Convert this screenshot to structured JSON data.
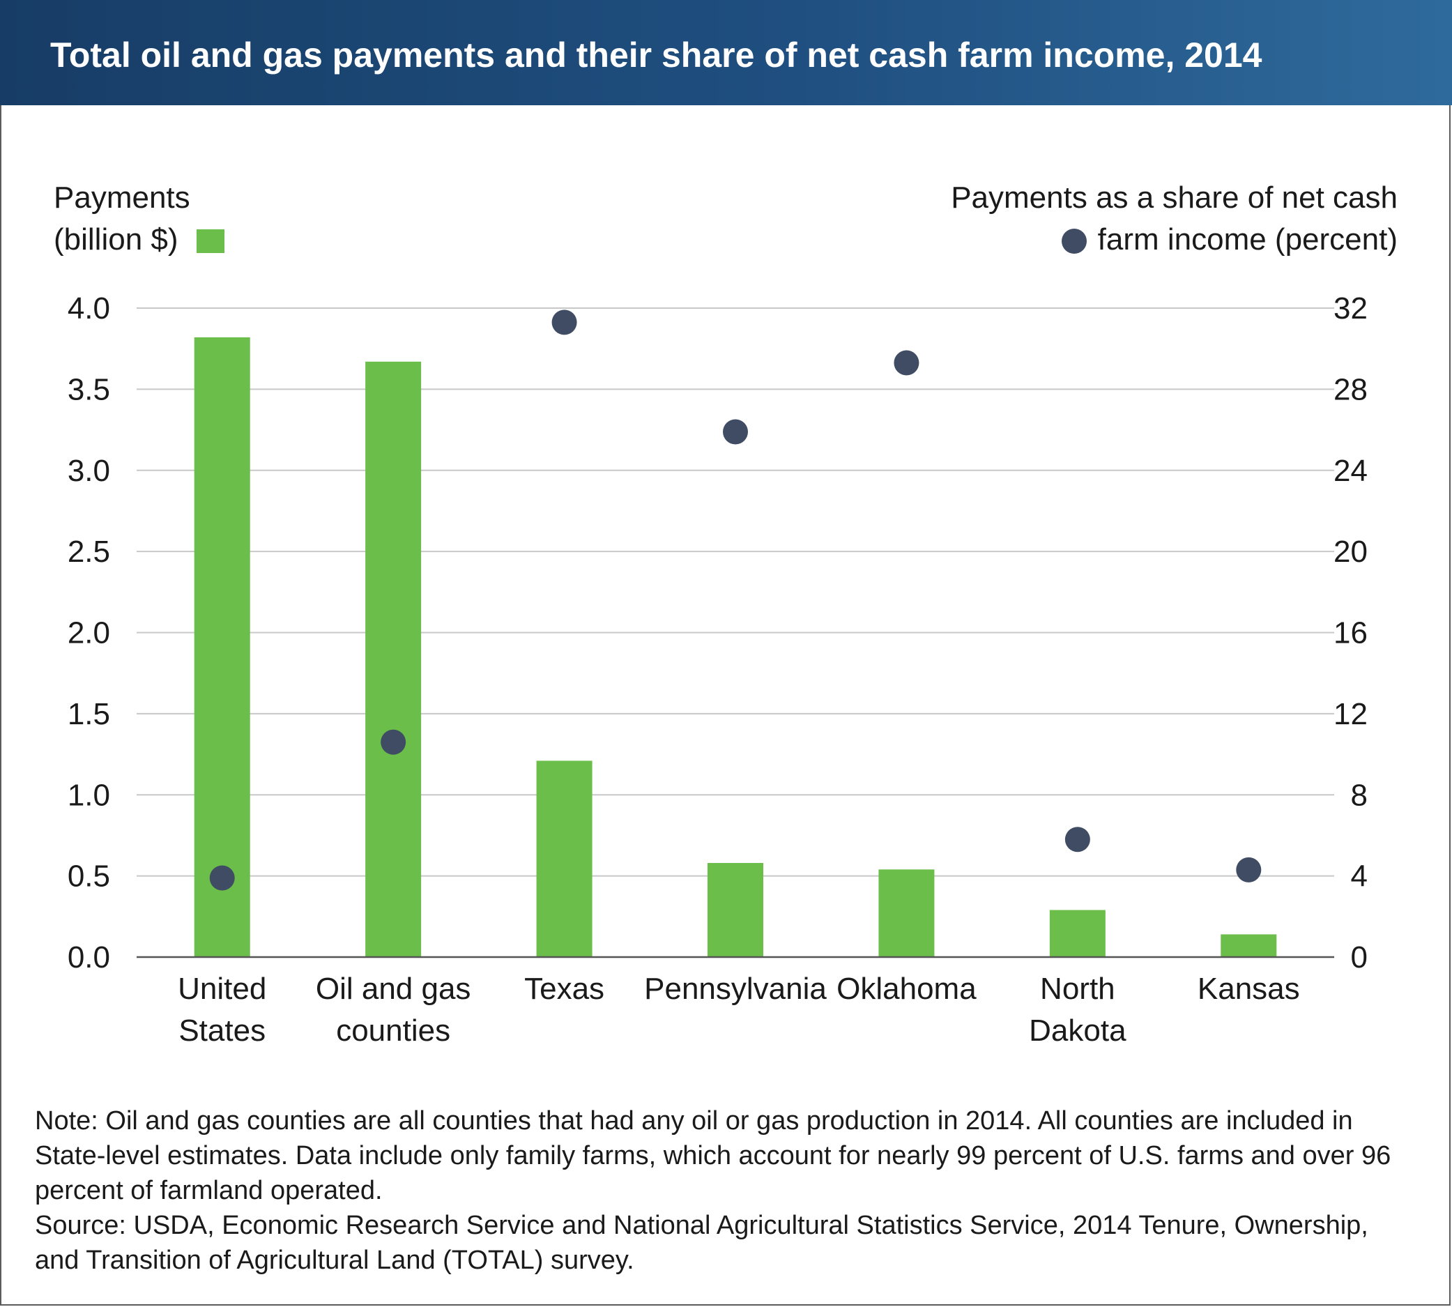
{
  "header": {
    "title": "Total oil and gas payments and their share of net cash farm income, 2014"
  },
  "legend": {
    "left_line1": "Payments",
    "left_line2": "(billion $)",
    "right_line1": "Payments as a share of net cash",
    "right_line2": "farm income (percent)"
  },
  "colors": {
    "bar": "#6cbe4b",
    "dot": "#3f4c64",
    "header": "#1f4f80",
    "grid": "#c8c8c8"
  },
  "chart_data": {
    "type": "bar",
    "categories": [
      [
        "United",
        "States"
      ],
      [
        "Oil and gas",
        "counties"
      ],
      [
        "Texas"
      ],
      [
        "Pennsylvania"
      ],
      [
        "Oklahoma"
      ],
      [
        "North",
        "Dakota"
      ],
      [
        "Kansas"
      ]
    ],
    "series": [
      {
        "name": "Payments (billion $)",
        "type": "bar",
        "axis": "left",
        "values": [
          3.82,
          3.67,
          1.21,
          0.58,
          0.54,
          0.29,
          0.14
        ]
      },
      {
        "name": "Payments as a share of net cash farm income (percent)",
        "type": "scatter",
        "axis": "right",
        "values": [
          3.9,
          10.6,
          31.3,
          25.9,
          29.3,
          5.8,
          4.3
        ]
      }
    ],
    "y_left": {
      "range": [
        0,
        4.0
      ],
      "ticks": [
        "0.0",
        "0.5",
        "1.0",
        "1.5",
        "2.0",
        "2.5",
        "3.0",
        "3.5",
        "4.0"
      ]
    },
    "y_right": {
      "range": [
        0,
        32
      ],
      "ticks": [
        "0",
        "4",
        "8",
        "12",
        "16",
        "20",
        "24",
        "28",
        "32"
      ]
    },
    "grid": true
  },
  "note": {
    "text": "Note: Oil and gas counties are all counties that had any oil or gas production in 2014. All counties are included in State-level estimates. Data include only family farms, which account for nearly 99 percent of U.S. farms and over 96 percent of farmland operated.",
    "source": "Source: USDA, Economic Research Service and National Agricultural Statistics Service, 2014 Tenure, Ownership, and Transition of Agricultural Land (TOTAL) survey."
  }
}
